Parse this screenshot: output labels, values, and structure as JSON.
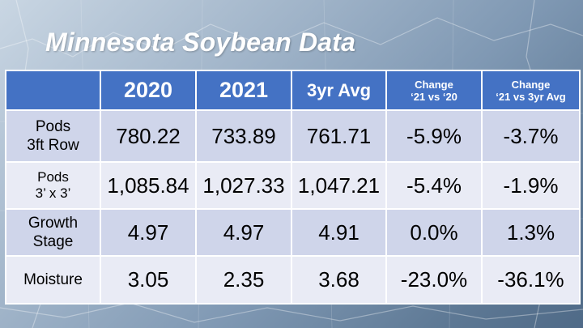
{
  "title": "Minnesota Soybean Data",
  "table": {
    "headers": {
      "corner": "",
      "col_2020": "2020",
      "col_2021": "2021",
      "col_avg": "3yr Avg",
      "change_1_line1": "Change",
      "change_1_line2": "‘21 vs ‘20",
      "change_2_line1": "Change",
      "change_2_line2": "‘21 vs 3yr Avg"
    },
    "rows": [
      {
        "label_line1": "Pods",
        "label_line2": "3ft Row",
        "v2020": "780.22",
        "v2021": "733.89",
        "avg": "761.71",
        "chg1": "-5.9%",
        "chg2": "-3.7%"
      },
      {
        "label_line1": "Pods",
        "label_line2": "3’ x 3’",
        "v2020": "1,085.84",
        "v2021": "1,027.33",
        "avg": "1,047.21",
        "chg1": "-5.4%",
        "chg2": "-1.9%"
      },
      {
        "label_line1": "Growth",
        "label_line2": "Stage",
        "v2020": "4.97",
        "v2021": "4.97",
        "avg": "4.91",
        "chg1": "0.0%",
        "chg2": "1.3%"
      },
      {
        "label_line1": "Moisture",
        "label_line2": "",
        "v2020": "3.05",
        "v2021": "2.35",
        "avg": "3.68",
        "chg1": "-23.0%",
        "chg2": "-36.1%"
      }
    ]
  },
  "colors": {
    "header_bg": "#4472c4",
    "row_dark": "#cfd5ea",
    "row_light": "#e9ebf5",
    "title_text": "#ffffff"
  }
}
